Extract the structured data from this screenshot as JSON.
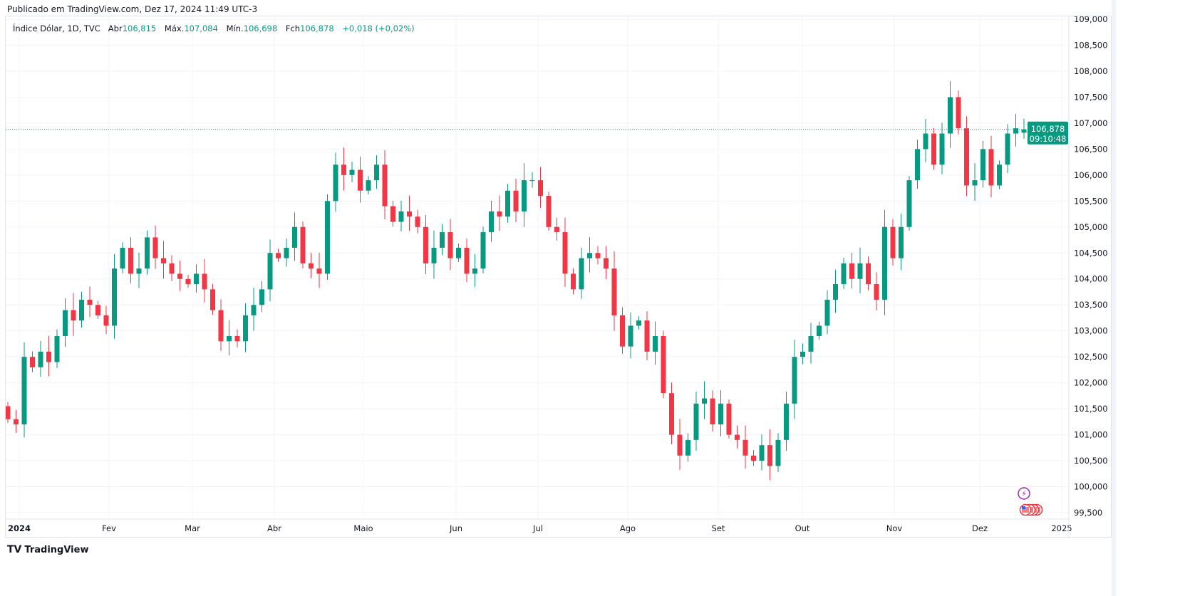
{
  "published": "Publicado em TradingView.com, Dez 17, 2024 11:49 UTC-3",
  "legend": {
    "symbol": "Índice Dólar, 1D, TVC",
    "open_label": "Abr",
    "open": "106,815",
    "high_label": "Máx.",
    "high": "107,084",
    "low_label": "Mín.",
    "low": "106,698",
    "close_label": "Fch",
    "close": "106,878",
    "change": "+0,018 (+0,02%)"
  },
  "price_label": {
    "price": "106,878",
    "countdown": "09:10:48"
  },
  "brand": "TradingView",
  "colors": {
    "up": "#089981",
    "down": "#f23645",
    "grid": "#f0f3fa",
    "event": "#9c27b0"
  },
  "chart_data": {
    "type": "candlestick",
    "title": "Índice Dólar, 1D, TVC",
    "ylim": [
      99.5,
      109.0
    ],
    "yticks": [
      "109,000",
      "108,500",
      "108,000",
      "107,500",
      "107,000",
      "106,500",
      "106,000",
      "105,500",
      "105,000",
      "104,500",
      "104,000",
      "103,500",
      "103,000",
      "102,500",
      "102,000",
      "101,500",
      "101,000",
      "100,500",
      "100,000",
      "99,500"
    ],
    "xticks": [
      "2024",
      "Fev",
      "Mar",
      "Abr",
      "Maio",
      "Jun",
      "Jul",
      "Ago",
      "Set",
      "Out",
      "Nov",
      "Dez",
      "2025"
    ],
    "closes": [
      101.3,
      101.2,
      102.5,
      102.3,
      102.6,
      102.4,
      102.9,
      103.4,
      103.2,
      103.6,
      103.5,
      103.3,
      103.1,
      104.2,
      104.6,
      104.1,
      104.2,
      104.8,
      104.4,
      104.3,
      104.1,
      104.0,
      103.9,
      104.1,
      103.8,
      103.4,
      102.8,
      102.9,
      102.8,
      103.3,
      103.5,
      103.8,
      104.5,
      104.4,
      104.6,
      105.0,
      104.3,
      104.2,
      104.1,
      105.5,
      106.2,
      106.0,
      106.1,
      105.7,
      105.9,
      106.2,
      105.4,
      105.1,
      105.3,
      105.2,
      105.0,
      104.3,
      104.6,
      104.9,
      104.4,
      104.6,
      104.1,
      104.2,
      104.9,
      105.3,
      105.2,
      105.7,
      105.3,
      105.9,
      105.9,
      105.6,
      105.0,
      104.9,
      104.1,
      103.8,
      104.4,
      104.5,
      104.4,
      104.2,
      103.3,
      102.7,
      103.1,
      103.2,
      102.6,
      102.9,
      101.8,
      101.0,
      100.6,
      100.9,
      101.6,
      101.7,
      101.2,
      101.6,
      101.0,
      100.9,
      100.6,
      100.5,
      100.8,
      100.4,
      100.9,
      101.6,
      102.5,
      102.6,
      102.9,
      103.1,
      103.6,
      103.9,
      104.3,
      104.0,
      104.3,
      103.9,
      103.6,
      105.0,
      104.4,
      105.0,
      105.9,
      106.5,
      106.8,
      106.2,
      106.8,
      107.5,
      106.9,
      105.8,
      105.9,
      106.5,
      105.8,
      106.2,
      106.8,
      106.9,
      106.878
    ],
    "last_candle": {
      "open": 106.815,
      "high": 107.084,
      "low": 106.698,
      "close": 106.878
    }
  }
}
